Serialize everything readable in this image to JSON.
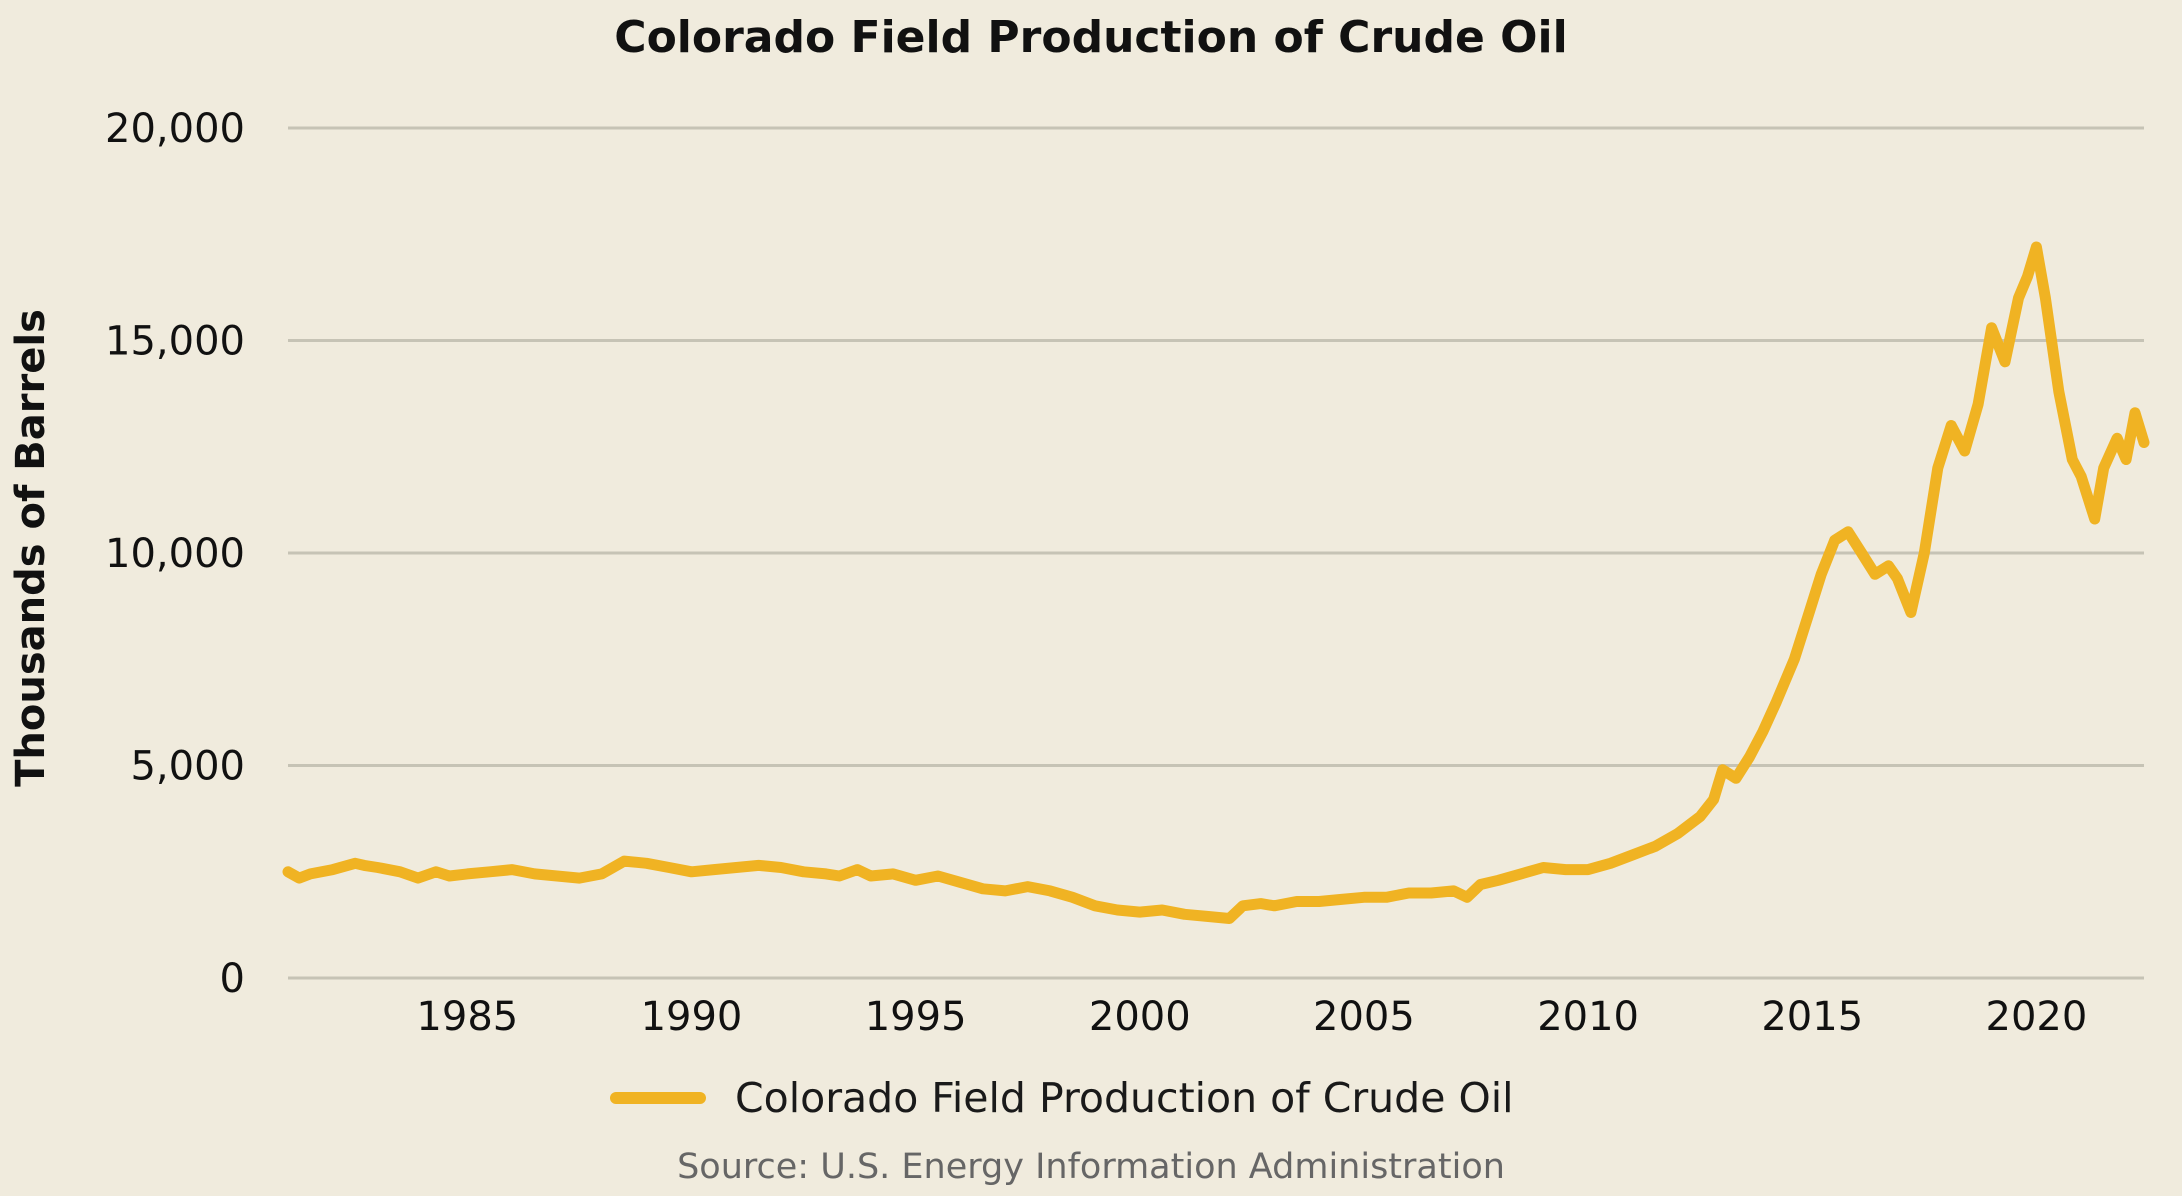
{
  "chart_data": {
    "type": "line",
    "title": "Colorado Field Production of Crude Oil",
    "xlabel": "",
    "ylabel": "Thousands of  Barrels",
    "source": "Source: U.S. Energy Information Administration",
    "legend_position": "bottom",
    "grid": true,
    "xlim": [
      1981,
      2022.4
    ],
    "ylim": [
      0,
      20000
    ],
    "x_ticks": [
      1985,
      1990,
      1995,
      2000,
      2005,
      2010,
      2015,
      2020
    ],
    "x_tick_labels": [
      "1985",
      "1990",
      "1995",
      "2000",
      "2005",
      "2010",
      "2015",
      "2020"
    ],
    "y_ticks": [
      0,
      5000,
      10000,
      15000,
      20000
    ],
    "y_tick_labels": [
      "0",
      "5,000",
      "10,000",
      "15,000",
      "20,000"
    ],
    "colors": {
      "line": "#f0b323",
      "background": "#f0ebdd",
      "grid": "#c6c3b5"
    },
    "series": [
      {
        "name": "Colorado Field Production of Crude Oil",
        "x": [
          1981.0,
          1981.25,
          1981.5,
          1982.0,
          1982.5,
          1982.7,
          1983.0,
          1983.5,
          1983.9,
          1984.3,
          1984.6,
          1985.0,
          1985.5,
          1986.0,
          1986.5,
          1987.0,
          1987.5,
          1988.0,
          1988.5,
          1989.0,
          1989.5,
          1990.0,
          1990.5,
          1991.0,
          1991.5,
          1992.0,
          1992.5,
          1993.0,
          1993.3,
          1993.7,
          1994.0,
          1994.5,
          1995.0,
          1995.5,
          1996.0,
          1996.5,
          1997.0,
          1997.5,
          1998.0,
          1998.5,
          1999.0,
          1999.5,
          2000.0,
          2000.5,
          2001.0,
          2001.5,
          2002.0,
          2002.3,
          2002.7,
          2003.0,
          2003.5,
          2004.0,
          2004.5,
          2005.0,
          2005.5,
          2006.0,
          2006.5,
          2007.0,
          2007.3,
          2007.6,
          2008.0,
          2008.5,
          2009.0,
          2009.5,
          2010.0,
          2010.5,
          2011.0,
          2011.5,
          2012.0,
          2012.5,
          2012.8,
          2013.0,
          2013.3,
          2013.6,
          2013.9,
          2014.2,
          2014.6,
          2014.9,
          2015.2,
          2015.5,
          2015.8,
          2016.1,
          2016.4,
          2016.7,
          2016.9,
          2017.2,
          2017.5,
          2017.8,
          2018.1,
          2018.4,
          2018.7,
          2019.0,
          2019.3,
          2019.6,
          2019.8,
          2020.0,
          2020.2,
          2020.5,
          2020.8,
          2021.0,
          2021.3,
          2021.5,
          2021.8,
          2022.0,
          2022.2,
          2022.4
        ],
        "values": [
          2500,
          2350,
          2450,
          2550,
          2700,
          2650,
          2600,
          2500,
          2350,
          2500,
          2400,
          2450,
          2500,
          2550,
          2450,
          2400,
          2350,
          2450,
          2750,
          2700,
          2600,
          2500,
          2550,
          2600,
          2650,
          2600,
          2500,
          2450,
          2400,
          2550,
          2400,
          2450,
          2300,
          2400,
          2250,
          2100,
          2050,
          2150,
          2050,
          1900,
          1700,
          1600,
          1550,
          1600,
          1500,
          1450,
          1400,
          1700,
          1750,
          1700,
          1800,
          1800,
          1850,
          1900,
          1900,
          2000,
          2000,
          2050,
          1900,
          2200,
          2300,
          2450,
          2600,
          2550,
          2550,
          2700,
          2900,
          3100,
          3400,
          3800,
          4200,
          4900,
          4700,
          5200,
          5800,
          6500,
          7500,
          8500,
          9500,
          10300,
          10500,
          10000,
          9500,
          9700,
          9400,
          8600,
          10000,
          12000,
          13000,
          12400,
          13500,
          15300,
          14500,
          16000,
          16500,
          17200,
          16000,
          13800,
          12200,
          11800,
          10800,
          12000,
          12700,
          12200,
          13300,
          12600
        ]
      }
    ]
  }
}
